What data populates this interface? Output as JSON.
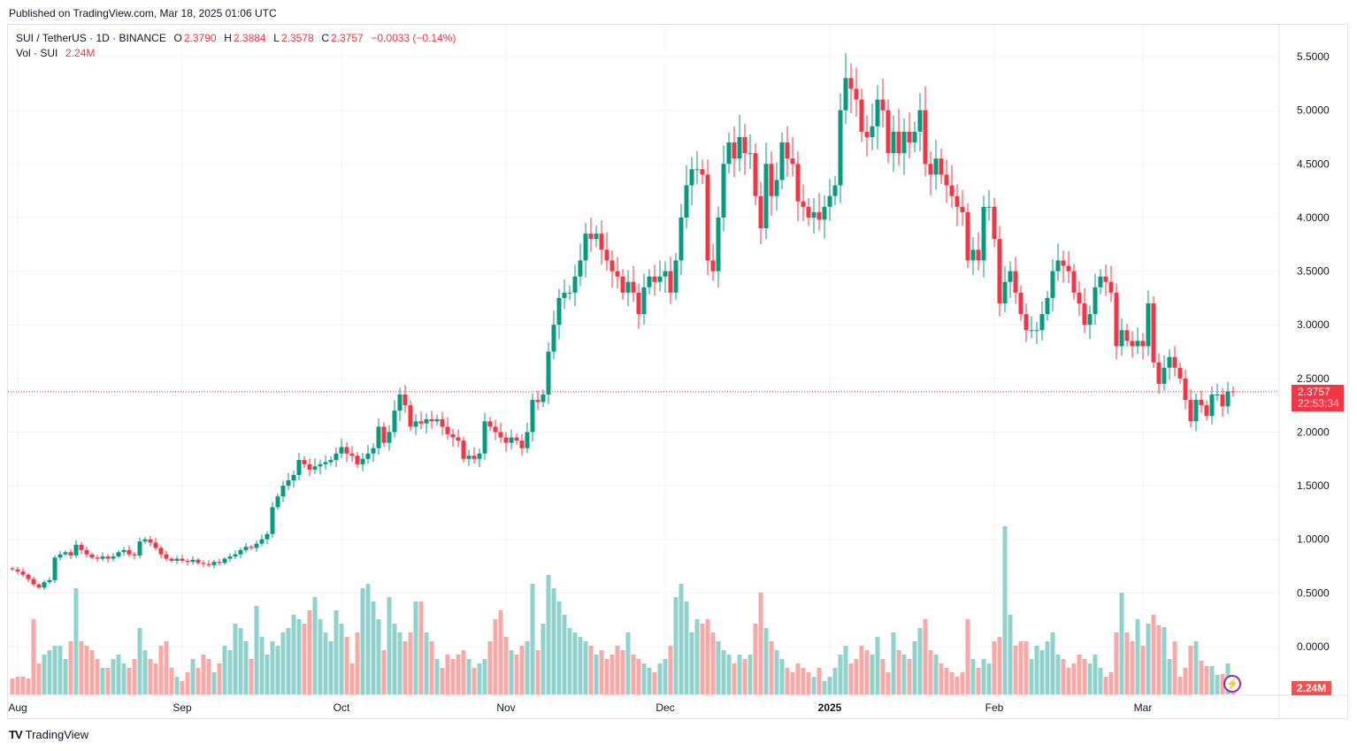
{
  "published": "Published on TradingView.com, Mar 18, 2025 01:06 UTC",
  "legend": {
    "symbol": "SUI / TetherUS · 1D · BINANCE",
    "o_label": "O",
    "o": "2.3790",
    "h_label": "H",
    "h": "2.3884",
    "l_label": "L",
    "l": "2.3578",
    "c_label": "C",
    "c": "2.3757",
    "change": "−0.0033 (−0.14%)",
    "vol_label": "Vol · SUI",
    "vol": "2.24M"
  },
  "last_price_label": "2.3757",
  "countdown": "22:53:34",
  "volume_label": "2.24M",
  "logo_text": "TradingView",
  "colors": {
    "up": "#089981",
    "down": "#f23645",
    "up_vol": "#92d2cc",
    "down_vol": "#f7a9a7",
    "accent": "#9c27b0"
  },
  "chart_data": {
    "type": "candlestick",
    "interval": "1D",
    "start_date": "2024-07-31",
    "end_date": "2025-03-18",
    "ylim": [
      0,
      5.5
    ],
    "y_ticks": [
      "0.0000",
      "0.5000",
      "1.0000",
      "1.5000",
      "2.0000",
      "2.5000",
      "3.0000",
      "3.5000",
      "4.0000",
      "4.5000",
      "5.0000",
      "5.5000"
    ],
    "x_ticks": [
      {
        "label": "Aug",
        "date": "2024-08-01",
        "bold": false
      },
      {
        "label": "Sep",
        "date": "2024-09-01",
        "bold": false
      },
      {
        "label": "Oct",
        "date": "2024-10-01",
        "bold": false
      },
      {
        "label": "Nov",
        "date": "2024-11-01",
        "bold": false
      },
      {
        "label": "Dec",
        "date": "2024-12-01",
        "bold": false
      },
      {
        "label": "2025",
        "date": "2025-01-01",
        "bold": true
      },
      {
        "label": "Feb",
        "date": "2025-02-01",
        "bold": false
      },
      {
        "label": "Mar",
        "date": "2025-03-01",
        "bold": false
      }
    ],
    "grid": true,
    "first_open": 0.73,
    "close": [
      0.72,
      0.7,
      0.67,
      0.63,
      0.58,
      0.55,
      0.6,
      0.62,
      0.83,
      0.86,
      0.88,
      0.85,
      0.95,
      0.9,
      0.86,
      0.83,
      0.82,
      0.84,
      0.82,
      0.84,
      0.88,
      0.9,
      0.86,
      0.85,
      0.98,
      1.0,
      0.97,
      0.92,
      0.86,
      0.82,
      0.8,
      0.82,
      0.8,
      0.79,
      0.81,
      0.78,
      0.77,
      0.76,
      0.79,
      0.78,
      0.82,
      0.84,
      0.86,
      0.9,
      0.93,
      0.92,
      0.96,
      1.0,
      1.05,
      1.3,
      1.4,
      1.5,
      1.55,
      1.6,
      1.74,
      1.7,
      1.65,
      1.68,
      1.7,
      1.72,
      1.74,
      1.8,
      1.86,
      1.8,
      1.78,
      1.7,
      1.75,
      1.8,
      1.85,
      2.05,
      1.9,
      2.0,
      2.2,
      2.35,
      2.25,
      2.05,
      2.1,
      2.08,
      2.12,
      2.1,
      2.12,
      2.05,
      1.98,
      1.95,
      1.92,
      1.75,
      1.78,
      1.75,
      1.8,
      2.1,
      2.05,
      2.0,
      1.95,
      1.9,
      1.95,
      1.92,
      1.85,
      2.0,
      2.3,
      2.28,
      2.35,
      2.75,
      3.0,
      3.25,
      3.3,
      3.3,
      3.45,
      3.6,
      3.85,
      3.8,
      3.85,
      3.7,
      3.6,
      3.5,
      3.45,
      3.3,
      3.4,
      3.3,
      3.1,
      3.35,
      3.45,
      3.4,
      3.45,
      3.5,
      3.3,
      3.6,
      4.0,
      4.3,
      4.45,
      4.45,
      4.4,
      3.6,
      3.5,
      4.0,
      4.5,
      4.7,
      4.55,
      4.75,
      4.6,
      4.6,
      4.2,
      3.9,
      4.5,
      4.2,
      4.35,
      4.7,
      4.55,
      4.5,
      4.15,
      4.1,
      4.0,
      4.05,
      3.98,
      4.1,
      4.2,
      4.3,
      5.0,
      5.3,
      5.2,
      5.1,
      4.8,
      4.75,
      4.85,
      5.1,
      5.0,
      4.6,
      4.8,
      4.6,
      4.8,
      4.7,
      4.8,
      5.0,
      4.5,
      4.4,
      4.55,
      4.4,
      4.3,
      4.2,
      4.1,
      4.05,
      3.6,
      3.7,
      3.6,
      4.1,
      4.1,
      3.8,
      3.2,
      3.4,
      3.5,
      3.3,
      3.1,
      2.95,
      2.95,
      2.95,
      3.1,
      3.25,
      3.5,
      3.6,
      3.55,
      3.5,
      3.3,
      3.2,
      3.0,
      3.1,
      3.35,
      3.45,
      3.4,
      3.3,
      2.8,
      2.95,
      2.85,
      2.8,
      2.85,
      2.8,
      3.2,
      2.65,
      2.45,
      2.6,
      2.7,
      2.6,
      2.5,
      2.3,
      2.1,
      2.3,
      2.25,
      2.15,
      2.35,
      2.35,
      2.24,
      2.379,
      2.3757
    ],
    "volume_m": [
      18,
      20,
      20,
      18,
      85,
      35,
      45,
      50,
      55,
      55,
      40,
      60,
      120,
      60,
      55,
      50,
      40,
      30,
      30,
      40,
      45,
      35,
      30,
      40,
      75,
      50,
      40,
      35,
      55,
      60,
      30,
      20,
      15,
      25,
      40,
      30,
      45,
      40,
      25,
      35,
      55,
      50,
      80,
      75,
      60,
      40,
      100,
      65,
      45,
      60,
      55,
      70,
      75,
      90,
      85,
      80,
      95,
      110,
      85,
      70,
      60,
      95,
      80,
      65,
      35,
      70,
      120,
      125,
      105,
      85,
      50,
      110,
      80,
      70,
      60,
      70,
      105,
      105,
      70,
      60,
      40,
      30,
      45,
      40,
      45,
      50,
      40,
      30,
      35,
      40,
      60,
      85,
      95,
      65,
      50,
      45,
      55,
      60,
      125,
      50,
      80,
      135,
      120,
      105,
      90,
      75,
      70,
      65,
      60,
      55,
      45,
      50,
      40,
      45,
      55,
      50,
      70,
      45,
      40,
      35,
      30,
      25,
      35,
      40,
      55,
      110,
      125,
      105,
      70,
      85,
      80,
      85,
      70,
      60,
      50,
      45,
      35,
      45,
      40,
      45,
      80,
      115,
      75,
      60,
      50,
      40,
      30,
      25,
      35,
      30,
      25,
      20,
      30,
      15,
      20,
      30,
      45,
      55,
      35,
      40,
      55,
      50,
      45,
      65,
      40,
      25,
      70,
      50,
      45,
      40,
      60,
      75,
      85,
      50,
      45,
      35,
      30,
      25,
      20,
      25,
      85,
      40,
      30,
      40,
      35,
      60,
      65,
      190,
      90,
      55,
      60,
      60,
      40,
      55,
      50,
      60,
      70,
      45,
      40,
      30,
      35,
      45,
      40,
      35,
      45,
      30,
      20,
      25,
      70,
      115,
      70,
      60,
      85,
      55,
      80,
      90,
      78,
      76,
      40,
      60,
      20,
      30,
      55,
      60,
      38,
      32,
      32,
      22,
      23,
      35,
      2.24
    ]
  }
}
